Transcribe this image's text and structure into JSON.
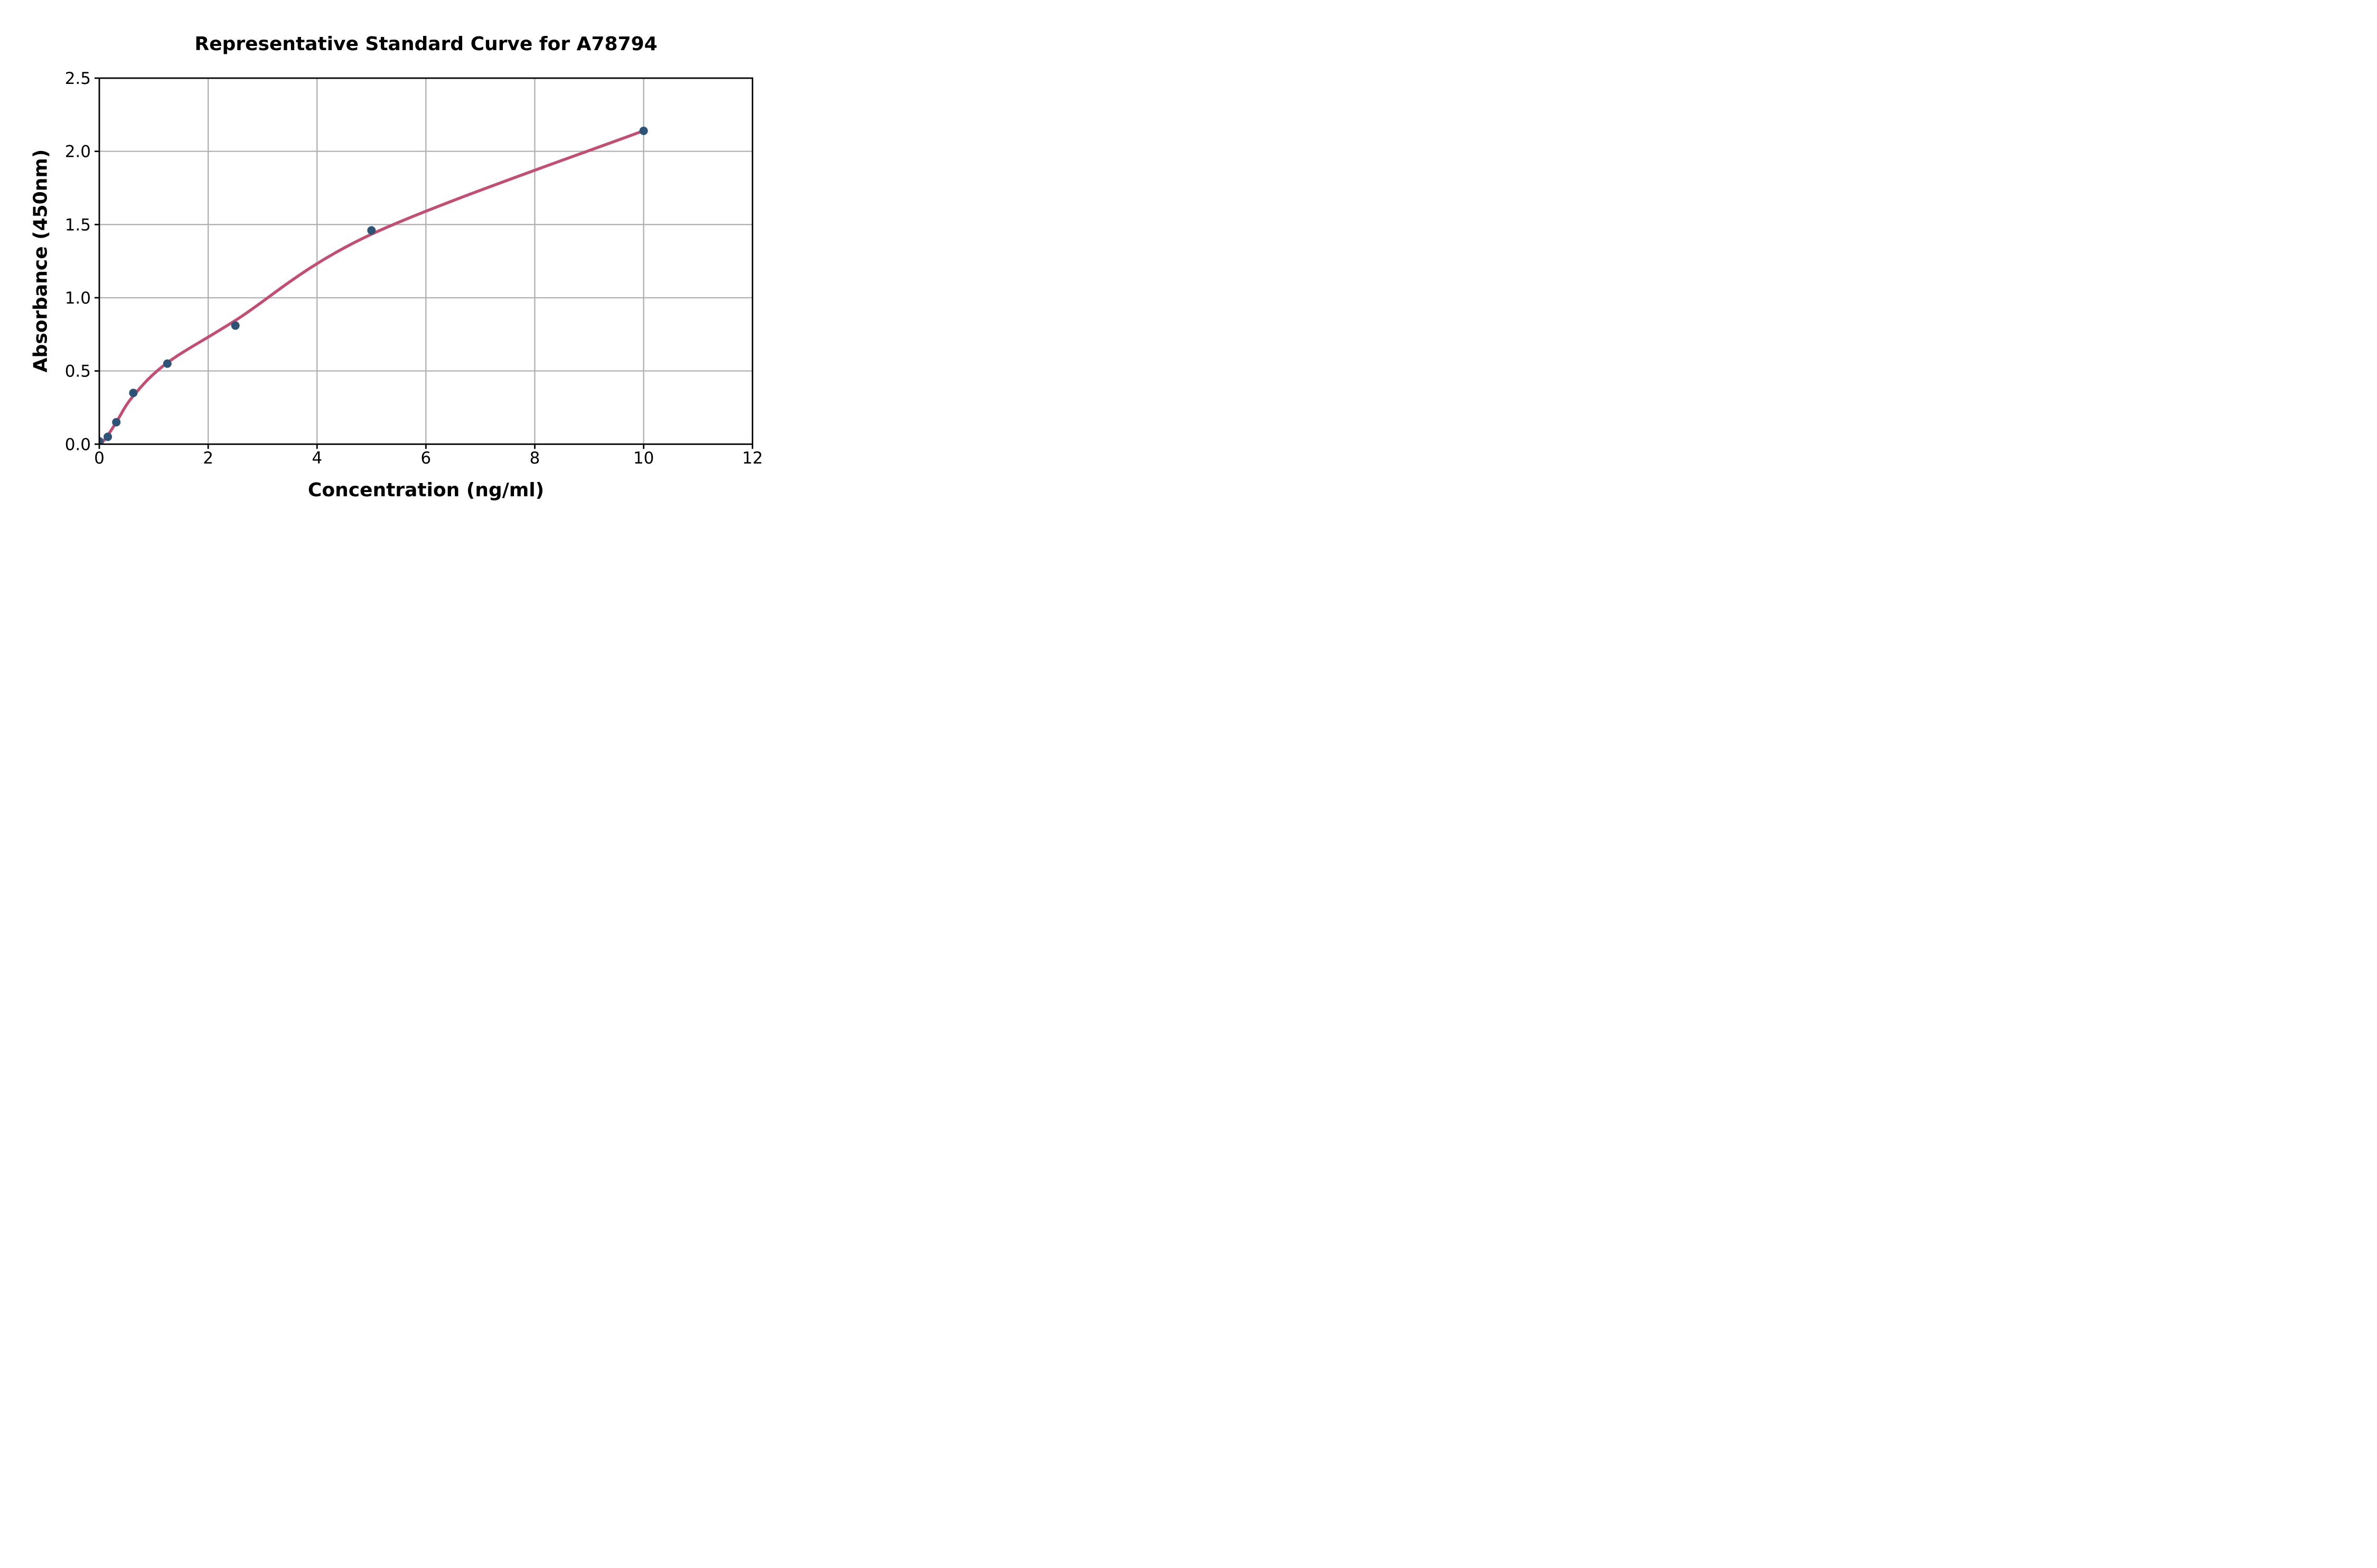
{
  "chart_data": {
    "type": "scatter",
    "title": "Representative Standard Curve for A78794",
    "xlabel": "Concentration (ng/ml)",
    "ylabel": "Absorbance (450nm)",
    "xlim": [
      0,
      12
    ],
    "ylim": [
      0,
      2.5
    ],
    "x_ticks": [
      0,
      2,
      4,
      6,
      8,
      10,
      12
    ],
    "x_tick_labels": [
      "0",
      "2",
      "4",
      "6",
      "8",
      "10",
      "12"
    ],
    "y_ticks": [
      0,
      0.5,
      1.0,
      1.5,
      2.0,
      2.5
    ],
    "y_tick_labels": [
      "0.0",
      "0.5",
      "1.0",
      "1.5",
      "2.0",
      "2.5"
    ],
    "grid": true,
    "legend": false,
    "series": [
      {
        "name": "standard-points",
        "type": "scatter",
        "x": [
          0,
          0.156,
          0.3125,
          0.625,
          1.25,
          2.5,
          5,
          10
        ],
        "y": [
          0.02,
          0.05,
          0.15,
          0.35,
          0.55,
          0.81,
          1.46,
          2.14
        ]
      },
      {
        "name": "fitted-curve",
        "type": "line",
        "x": [
          0.04,
          0.156,
          0.3125,
          0.625,
          1.25,
          2.5,
          5,
          10
        ],
        "y": [
          0.005,
          0.06,
          0.15,
          0.33,
          0.556,
          0.845,
          1.434,
          2.141
        ]
      }
    ],
    "colors": {
      "marker": "#2d5477",
      "curve": "#c44e72",
      "grid": "#b0b0b0",
      "axis": "#000000",
      "background": "#ffffff"
    }
  }
}
